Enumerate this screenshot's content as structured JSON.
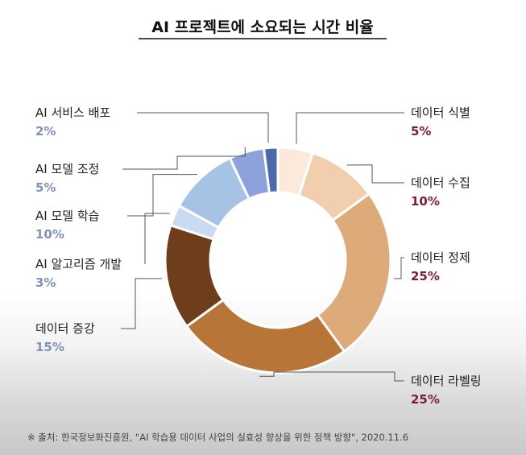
{
  "chart_data": {
    "type": "pie",
    "title": "AI 프로젝트에 소요되는 시간 비율",
    "categories": [
      "데이터 식별",
      "데이터 수집",
      "데이터 정제",
      "데이터 라벨링",
      "데이터 증강",
      "AI 알고리즘 개발",
      "AI 모델 학습",
      "AI 모델 조정",
      "AI 서비스 배포"
    ],
    "values": [
      5,
      10,
      25,
      25,
      15,
      3,
      10,
      5,
      2
    ],
    "value_labels": [
      "5%",
      "10%",
      "25%",
      "25%",
      "15%",
      "3%",
      "10%",
      "5%",
      "2%"
    ],
    "colors": [
      "#fbeadb",
      "#f1cfae",
      "#ddaa7a",
      "#b87538",
      "#6e3d1c",
      "#c9dbf0",
      "#a6c2e5",
      "#8da2db",
      "#4a6aaa"
    ],
    "hole": 0.6,
    "legend": "none"
  },
  "source": "※ 출처: 한국정보화진흥원, \"AI 학습용 데이터 사업의 실효성 향상을 위한 정책 방향\", 2020.11.6"
}
